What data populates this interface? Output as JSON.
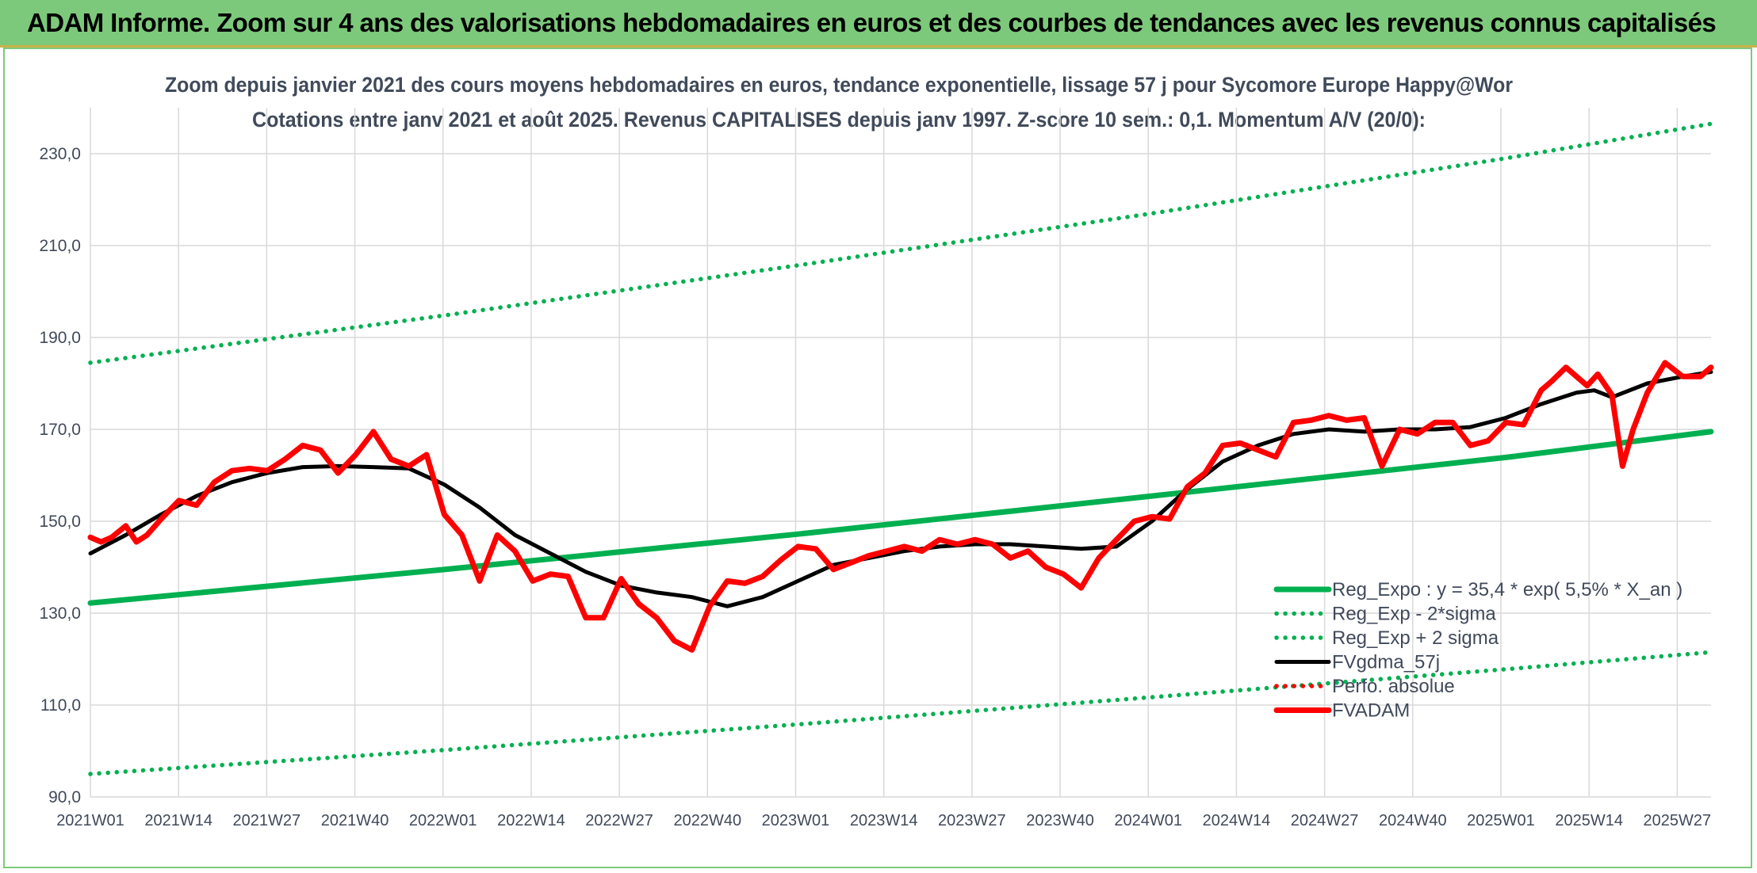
{
  "header": {
    "title": "ADAM Informe. Zoom sur 4 ans des valorisations hebdomadaires en euros et des courbes de tendances avec les revenus connus capitalisés"
  },
  "colors": {
    "banner": "#7dc97b",
    "trend": "#00b050",
    "price": "#ff0000",
    "smooth": "#000000",
    "grid": "#d9d9d9",
    "title_text": "#404a5a"
  },
  "chart_data": {
    "type": "line",
    "title": "Zoom depuis janvier 2021 des cours moyens hebdomadaires en euros, tendance exponentielle, lissage 57 j pour Sycomore Europe Happy@Wor",
    "subtitle": "Cotations entre janv 2021 et août 2025. Revenus CAPITALISES depuis janv 1997. Z-score 10 sem.: 0,1. Momentum A/V (20/0):",
    "ylim": [
      90,
      240
    ],
    "y_ticks": [
      "90,0",
      "110,0",
      "130,0",
      "150,0",
      "170,0",
      "190,0",
      "210,0",
      "230,0"
    ],
    "y_tick_values": [
      90,
      110,
      130,
      150,
      170,
      190,
      210,
      230
    ],
    "x_range": [
      2021.0,
      2025.58
    ],
    "x_ticks": [
      "2021W01",
      "2021W14",
      "2021W27",
      "2021W40",
      "2022W01",
      "2022W14",
      "2022W27",
      "2022W40",
      "2023W01",
      "2023W14",
      "2023W27",
      "2023W40",
      "2024W01",
      "2024W14",
      "2024W27",
      "2024W40",
      "2025W01",
      "2025W14",
      "2025W27"
    ],
    "grid": true,
    "legend_position": "bottom-right",
    "series": [
      {
        "name": "Reg_Expo : y = 35,4 * exp( 5,5% *  X_an )",
        "style": "solid",
        "color": "#00b050",
        "x": [
          2021.0,
          2022.0,
          2023.0,
          2024.0,
          2025.0,
          2025.58
        ],
        "y": [
          132.2,
          139.5,
          147.2,
          155.5,
          163.9,
          169.5
        ]
      },
      {
        "name": "Reg_Exp - 2*sigma",
        "style": "dotted",
        "color": "#00b050",
        "x": [
          2021.0,
          2022.0,
          2023.0,
          2024.0,
          2025.0,
          2025.58
        ],
        "y": [
          95.0,
          100.2,
          105.8,
          111.7,
          117.8,
          121.5
        ]
      },
      {
        "name": "Reg_Exp + 2 sigma",
        "style": "dotted",
        "color": "#00b050",
        "x": [
          2021.0,
          2022.0,
          2023.0,
          2024.0,
          2025.0,
          2025.58
        ],
        "y": [
          184.5,
          194.8,
          205.7,
          217.0,
          229.0,
          236.5
        ]
      },
      {
        "name": "FVgdma_57j",
        "style": "solid",
        "color": "#000000",
        "x": [
          2021.0,
          2021.1,
          2021.2,
          2021.3,
          2021.4,
          2021.5,
          2021.6,
          2021.7,
          2021.8,
          2021.9,
          2022.0,
          2022.1,
          2022.2,
          2022.3,
          2022.4,
          2022.5,
          2022.6,
          2022.7,
          2022.8,
          2022.9,
          2023.0,
          2023.1,
          2023.2,
          2023.3,
          2023.4,
          2023.5,
          2023.6,
          2023.7,
          2023.8,
          2023.9,
          2024.0,
          2024.1,
          2024.2,
          2024.3,
          2024.4,
          2024.5,
          2024.6,
          2024.7,
          2024.8,
          2024.9,
          2025.0,
          2025.1,
          2025.2,
          2025.25,
          2025.3,
          2025.4,
          2025.5,
          2025.58
        ],
        "y": [
          143.0,
          147.0,
          151.5,
          155.5,
          158.5,
          160.5,
          161.8,
          162.0,
          161.8,
          161.5,
          158.0,
          153.0,
          147.0,
          143.0,
          139.0,
          136.0,
          134.5,
          133.5,
          131.5,
          133.5,
          137.0,
          140.5,
          142.0,
          143.5,
          144.5,
          145.0,
          145.0,
          144.5,
          144.0,
          144.5,
          150.0,
          157.0,
          163.0,
          166.5,
          169.0,
          170.0,
          169.5,
          170.0,
          170.0,
          170.5,
          172.5,
          175.5,
          178.0,
          178.5,
          177.0,
          180.0,
          181.5,
          182.5
        ]
      },
      {
        "name": "Perfo. absolue",
        "style": "dotted",
        "color": "#ff0000",
        "x": [],
        "y": []
      },
      {
        "name": "FVADAM",
        "style": "solid",
        "color": "#ff0000",
        "x": [
          2021.0,
          2021.03,
          2021.06,
          2021.1,
          2021.13,
          2021.16,
          2021.2,
          2021.25,
          2021.3,
          2021.35,
          2021.4,
          2021.45,
          2021.5,
          2021.55,
          2021.6,
          2021.65,
          2021.7,
          2021.75,
          2021.8,
          2021.85,
          2021.9,
          2021.95,
          2022.0,
          2022.05,
          2022.1,
          2022.15,
          2022.2,
          2022.25,
          2022.3,
          2022.35,
          2022.4,
          2022.45,
          2022.5,
          2022.55,
          2022.6,
          2022.65,
          2022.7,
          2022.75,
          2022.8,
          2022.85,
          2022.9,
          2022.95,
          2023.0,
          2023.05,
          2023.1,
          2023.15,
          2023.2,
          2023.25,
          2023.3,
          2023.35,
          2023.4,
          2023.45,
          2023.5,
          2023.55,
          2023.6,
          2023.65,
          2023.7,
          2023.75,
          2023.8,
          2023.85,
          2023.9,
          2023.95,
          2024.0,
          2024.05,
          2024.1,
          2024.15,
          2024.2,
          2024.25,
          2024.3,
          2024.35,
          2024.4,
          2024.45,
          2024.5,
          2024.55,
          2024.6,
          2024.65,
          2024.7,
          2024.75,
          2024.8,
          2024.85,
          2024.9,
          2024.95,
          2025.0,
          2025.05,
          2025.1,
          2025.13,
          2025.17,
          2025.2,
          2025.23,
          2025.26,
          2025.3,
          2025.33,
          2025.36,
          2025.4,
          2025.45,
          2025.5,
          2025.55,
          2025.58
        ],
        "y": [
          146.5,
          145.5,
          146.5,
          149.0,
          145.5,
          147.0,
          150.5,
          154.5,
          153.5,
          158.5,
          161.0,
          161.5,
          161.0,
          163.5,
          166.5,
          165.5,
          160.5,
          164.5,
          169.5,
          163.5,
          162.0,
          164.5,
          151.5,
          147.0,
          137.0,
          147.0,
          143.5,
          137.0,
          138.5,
          138.0,
          129.0,
          129.0,
          137.5,
          132.0,
          129.0,
          124.0,
          122.0,
          131.5,
          137.0,
          136.5,
          138.0,
          141.5,
          144.5,
          144.0,
          139.5,
          141.0,
          142.5,
          143.5,
          144.5,
          143.5,
          146.0,
          145.0,
          146.0,
          145.0,
          142.0,
          143.5,
          140.0,
          138.5,
          135.5,
          142.0,
          146.0,
          150.0,
          151.0,
          150.5,
          157.5,
          160.5,
          166.5,
          167.0,
          165.5,
          164.0,
          171.5,
          172.0,
          173.0,
          172.0,
          172.5,
          162.0,
          170.0,
          169.0,
          171.5,
          171.5,
          166.5,
          167.5,
          171.5,
          171.0,
          178.5,
          180.5,
          183.5,
          181.5,
          179.5,
          182.0,
          177.5,
          162.0,
          170.0,
          178.0,
          184.5,
          181.5,
          181.5,
          183.5
        ]
      }
    ]
  }
}
